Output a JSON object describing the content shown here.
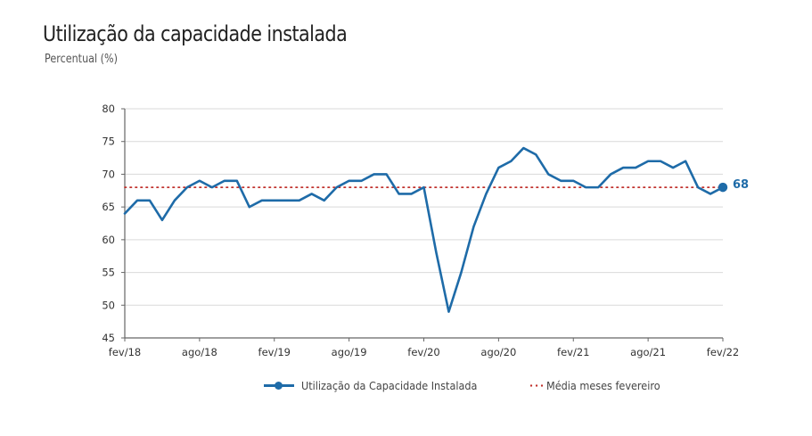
{
  "header": {
    "title": "Utilização da capacidade instalada",
    "subtitle": "Percentual (%)"
  },
  "chart_data": {
    "type": "line",
    "title": "Utilização da capacidade instalada",
    "subtitle": "Percentual (%)",
    "xlabel": "",
    "ylabel": "Percentual (%)",
    "ylim": [
      45,
      80
    ],
    "yticks": [
      45,
      50,
      55,
      60,
      65,
      70,
      75,
      80
    ],
    "grid": true,
    "x": [
      "fev/18",
      "mar/18",
      "abr/18",
      "mai/18",
      "jun/18",
      "jul/18",
      "ago/18",
      "set/18",
      "out/18",
      "nov/18",
      "dez/18",
      "jan/19",
      "fev/19",
      "mar/19",
      "abr/19",
      "mai/19",
      "jun/19",
      "jul/19",
      "ago/19",
      "set/19",
      "out/19",
      "nov/19",
      "dez/19",
      "jan/20",
      "fev/20",
      "mar/20",
      "abr/20",
      "mai/20",
      "jun/20",
      "jul/20",
      "ago/20",
      "set/20",
      "out/20",
      "nov/20",
      "dez/20",
      "jan/21",
      "fev/21",
      "mar/21",
      "abr/21",
      "mai/21",
      "jun/21",
      "jul/21",
      "ago/21",
      "set/21",
      "out/21",
      "nov/21",
      "dez/21",
      "jan/22",
      "fev/22"
    ],
    "xtick_labels": [
      "fev/18",
      "ago/18",
      "fev/19",
      "ago/19",
      "fev/20",
      "ago/20",
      "fev/21",
      "ago/21",
      "fev/22"
    ],
    "series": [
      {
        "name": "Utilização da Capacidade Instalada",
        "color": "#1e6ba8",
        "values": [
          64,
          66,
          66,
          63,
          66,
          68,
          69,
          68,
          69,
          69,
          65,
          66,
          66,
          66,
          66,
          67,
          66,
          68,
          69,
          69,
          70,
          70,
          67,
          67,
          68,
          58,
          49,
          55,
          62,
          67,
          71,
          72,
          74,
          73,
          70,
          69,
          69,
          68,
          68,
          70,
          71,
          71,
          72,
          72,
          71,
          72,
          68,
          67,
          68
        ]
      },
      {
        "name": "Média meses fevereiro",
        "color": "#c0302b",
        "style": "dotted",
        "value": 68
      }
    ],
    "annotations": [
      {
        "target": "fev/22",
        "text": "68"
      }
    ],
    "legend": {
      "position": "bottom",
      "entries": [
        "Utilização da Capacidade Instalada",
        "Média meses fevereiro"
      ]
    }
  }
}
